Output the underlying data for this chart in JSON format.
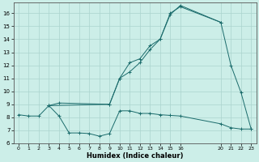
{
  "xlabel": "Humidex (Indice chaleur)",
  "background_color": "#cceee8",
  "grid_color": "#aad4ce",
  "line_color": "#1a6b6b",
  "xlim": [
    -0.5,
    23.5
  ],
  "ylim": [
    6,
    16.8
  ],
  "xticks": [
    0,
    1,
    2,
    3,
    4,
    5,
    6,
    7,
    8,
    9,
    10,
    11,
    12,
    13,
    14,
    15,
    16,
    20,
    21,
    22,
    23
  ],
  "yticks": [
    6,
    7,
    8,
    9,
    10,
    11,
    12,
    13,
    14,
    15,
    16
  ],
  "series1_x": [
    0,
    1,
    2,
    3,
    4,
    5,
    6,
    7,
    8,
    9,
    10,
    11,
    12,
    13,
    14,
    15,
    16,
    20,
    21,
    22,
    23
  ],
  "series1_y": [
    8.2,
    8.1,
    8.1,
    8.9,
    8.1,
    6.8,
    6.8,
    6.75,
    6.55,
    6.75,
    8.5,
    8.5,
    8.3,
    8.3,
    8.2,
    8.15,
    8.1,
    7.5,
    7.2,
    7.1,
    7.1
  ],
  "series2_x": [
    3,
    4,
    9,
    10,
    11,
    12,
    13,
    14,
    15,
    16,
    20,
    21,
    22,
    23
  ],
  "series2_y": [
    8.9,
    9.1,
    9.0,
    11.0,
    12.2,
    12.5,
    13.5,
    14.0,
    16.0,
    16.5,
    15.3,
    12.0,
    9.9,
    7.1
  ],
  "series3_x": [
    3,
    9,
    10,
    11,
    12,
    13,
    14,
    15,
    16,
    20
  ],
  "series3_y": [
    8.9,
    9.0,
    11.0,
    11.5,
    12.2,
    13.2,
    14.0,
    15.9,
    16.6,
    15.3
  ]
}
